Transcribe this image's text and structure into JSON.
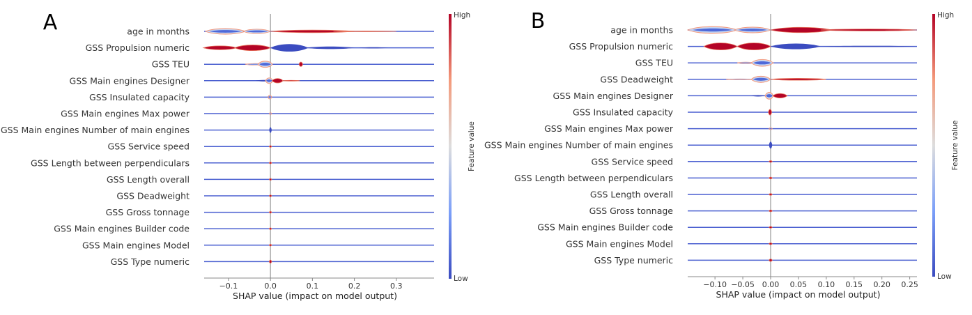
{
  "chart_data": [
    {
      "type": "violin",
      "panel_label": "A",
      "xlabel": "SHAP value (impact on model output)",
      "xlim": [
        -0.158,
        0.39
      ],
      "xticks": [
        -0.1,
        0.0,
        0.1,
        0.2,
        0.3
      ],
      "xtick_labels": [
        "−0.1",
        "0.0",
        "0.1",
        "0.2",
        "0.3"
      ],
      "colorbar": {
        "label": "Feature value",
        "high": "High",
        "low": "Low",
        "high_color": "#b40426",
        "mid_color": "#dddddd",
        "low_color": "#3b4cc0"
      },
      "features": [
        {
          "name": "age in months",
          "segments": [
            [
              -0.155,
              -0.06,
              0.45,
              "mixed"
            ],
            [
              -0.065,
              0.0,
              0.35,
              "mixed"
            ],
            [
              0.0,
              0.2,
              0.2,
              "high"
            ],
            [
              0.15,
              0.3,
              0.05,
              "high"
            ]
          ]
        },
        {
          "name": "GSS Propulsion numeric",
          "segments": [
            [
              -0.16,
              -0.08,
              0.3,
              "high"
            ],
            [
              -0.085,
              0.0,
              0.45,
              "high"
            ],
            [
              0.0,
              0.09,
              0.6,
              "low"
            ],
            [
              0.085,
              0.2,
              0.2,
              "low"
            ],
            [
              0.21,
              0.28,
              0.1,
              "low"
            ]
          ]
        },
        {
          "name": "GSS TEU",
          "segments": [
            [
              -0.06,
              -0.01,
              0.12,
              "mixed"
            ],
            [
              -0.03,
              0.005,
              0.5,
              "mixed"
            ],
            [
              0.068,
              0.077,
              0.35,
              "high"
            ]
          ]
        },
        {
          "name": "GSS Main engines Designer",
          "segments": [
            [
              -0.035,
              0.0,
              0.12,
              "low"
            ],
            [
              -0.012,
              0.006,
              0.45,
              "mixed"
            ],
            [
              0.004,
              0.03,
              0.35,
              "high"
            ],
            [
              0.028,
              0.07,
              0.06,
              "high"
            ]
          ]
        },
        {
          "name": "GSS Insulated capacity",
          "segments": [
            [
              -0.006,
              0.003,
              0.3,
              "mixed"
            ]
          ]
        },
        {
          "name": "GSS Main engines Max power",
          "segments": [
            [
              -0.003,
              0.003,
              0.15,
              "mixed"
            ]
          ]
        },
        {
          "name": "GSS Main engines Number of main engines",
          "segments": [
            [
              -0.003,
              0.003,
              0.45,
              "low"
            ]
          ]
        },
        {
          "name": "GSS Service speed",
          "segments": [
            [
              -0.003,
              0.003,
              0.15,
              "high"
            ]
          ]
        },
        {
          "name": "GSS Length between perpendiculars",
          "segments": [
            [
              -0.003,
              0.003,
              0.15,
              "high"
            ]
          ]
        },
        {
          "name": "GSS Length overall",
          "segments": [
            [
              -0.003,
              0.003,
              0.15,
              "high"
            ]
          ]
        },
        {
          "name": "GSS Deadweight",
          "segments": [
            [
              -0.003,
              0.003,
              0.15,
              "high"
            ]
          ]
        },
        {
          "name": "GSS Gross tonnage",
          "segments": [
            [
              -0.003,
              0.003,
              0.15,
              "high"
            ]
          ]
        },
        {
          "name": "GSS Main engines Builder code",
          "segments": [
            [
              -0.003,
              0.003,
              0.15,
              "high"
            ]
          ]
        },
        {
          "name": "GSS Main engines Model",
          "segments": [
            [
              -0.003,
              0.003,
              0.15,
              "high"
            ]
          ]
        },
        {
          "name": "GSS Type numeric",
          "segments": [
            [
              -0.003,
              0.003,
              0.25,
              "high"
            ]
          ]
        }
      ]
    },
    {
      "type": "violin",
      "panel_label": "B",
      "xlabel": "SHAP value (impact on model output)",
      "xlim": [
        -0.149,
        0.263
      ],
      "xticks": [
        -0.1,
        -0.05,
        0.0,
        0.05,
        0.1,
        0.15,
        0.2,
        0.25
      ],
      "xtick_labels": [
        "−0.10",
        "−0.05",
        "0.00",
        "0.05",
        "0.10",
        "0.15",
        "0.20",
        "0.25"
      ],
      "colorbar": {
        "label": "Feature value",
        "high": "High",
        "low": "Low",
        "high_color": "#b40426",
        "mid_color": "#dddddd",
        "low_color": "#3b4cc0"
      },
      "features": [
        {
          "name": "age in months",
          "segments": [
            [
              -0.149,
              -0.06,
              0.55,
              "mixed"
            ],
            [
              -0.065,
              0.0,
              0.45,
              "mixed"
            ],
            [
              0.0,
              0.11,
              0.42,
              "high"
            ],
            [
              0.09,
              0.263,
              0.15,
              "high"
            ]
          ]
        },
        {
          "name": "GSS Propulsion numeric",
          "segments": [
            [
              -0.12,
              -0.06,
              0.55,
              "high"
            ],
            [
              -0.06,
              0.0,
              0.55,
              "high"
            ],
            [
              0.0,
              0.09,
              0.45,
              "low"
            ],
            [
              0.085,
              0.263,
              0.1,
              "low"
            ]
          ]
        },
        {
          "name": "GSS TEU",
          "segments": [
            [
              -0.06,
              -0.03,
              0.12,
              "mixed"
            ],
            [
              -0.035,
              0.005,
              0.55,
              "mixed"
            ]
          ]
        },
        {
          "name": "GSS Deadweight",
          "segments": [
            [
              -0.08,
              -0.03,
              0.06,
              "mixed"
            ],
            [
              -0.035,
              0.0,
              0.5,
              "mixed"
            ],
            [
              0.0,
              0.1,
              0.15,
              "high"
            ]
          ]
        },
        {
          "name": "GSS Main engines Designer",
          "segments": [
            [
              -0.035,
              -0.01,
              0.12,
              "low"
            ],
            [
              -0.01,
              0.005,
              0.55,
              "mixed"
            ],
            [
              0.004,
              0.03,
              0.35,
              "high"
            ]
          ]
        },
        {
          "name": "GSS Insulated capacity",
          "segments": [
            [
              -0.004,
              0.002,
              0.45,
              "high"
            ]
          ]
        },
        {
          "name": "GSS Main engines Max power",
          "segments": [
            [
              -0.003,
              0.003,
              0.15,
              "mixed"
            ]
          ]
        },
        {
          "name": "GSS Main engines Number of main engines",
          "segments": [
            [
              -0.003,
              0.003,
              0.55,
              "low"
            ]
          ]
        },
        {
          "name": "GSS Service speed",
          "segments": [
            [
              -0.003,
              0.003,
              0.15,
              "high"
            ]
          ]
        },
        {
          "name": "GSS Length between perpendiculars",
          "segments": [
            [
              -0.003,
              0.003,
              0.15,
              "high"
            ]
          ]
        },
        {
          "name": "GSS Length overall",
          "segments": [
            [
              -0.003,
              0.003,
              0.15,
              "high"
            ]
          ]
        },
        {
          "name": "GSS Gross tonnage",
          "segments": [
            [
              -0.003,
              0.003,
              0.15,
              "high"
            ]
          ]
        },
        {
          "name": "GSS Main engines Builder code",
          "segments": [
            [
              -0.003,
              0.003,
              0.15,
              "high"
            ]
          ]
        },
        {
          "name": "GSS Main engines Model",
          "segments": [
            [
              -0.003,
              0.003,
              0.15,
              "high"
            ]
          ]
        },
        {
          "name": "GSS Type numeric",
          "segments": [
            [
              -0.003,
              0.003,
              0.2,
              "high"
            ]
          ]
        }
      ]
    }
  ]
}
